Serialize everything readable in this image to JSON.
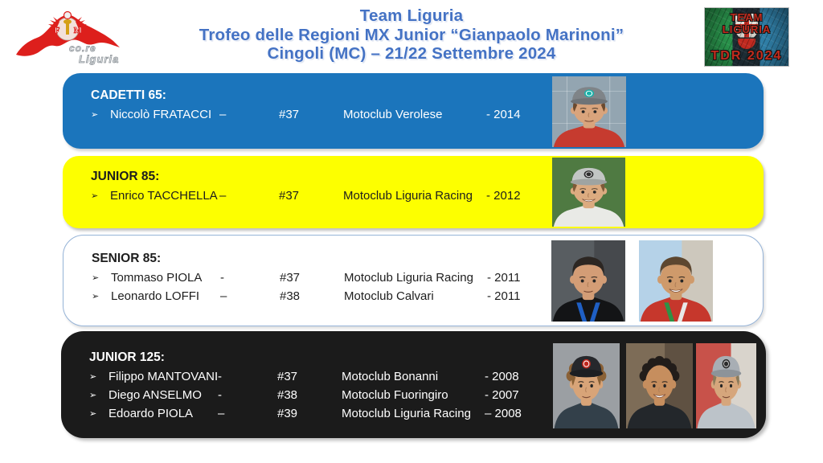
{
  "title": {
    "line1": "Team Liguria",
    "line2": "Trofeo delle Regioni MX Junior “Gianpaolo Marinoni”",
    "line3": "Cingoli (MC) – 21/22 Settembre 2024"
  },
  "logo_left": {
    "letter_f": "F",
    "letter_m": "M",
    "script_line1": "co.re",
    "script_line2": "Liguria"
  },
  "logo_right": {
    "top": "TEAM LIGURIA",
    "bottom": "TDR 2024"
  },
  "ui": {
    "bullet": "➢"
  },
  "colors": {
    "title_blue": "#4472C4",
    "panel_blue": "#1B75BC",
    "panel_yellow": "#FDFF00",
    "panel_black": "#1B1B1B",
    "panel_white_border": "#95B3D7",
    "flag_green": "#28914a",
    "flag_blue": "#2f7ea6",
    "flag_red": "#c12a20",
    "logo_red": "#DD1F1C"
  },
  "panels": [
    {
      "id": "cadetti-65",
      "heading": "CADETTI 65:",
      "rows": [
        {
          "name": "Niccolò FRATACCI",
          "dash": "–",
          "number": "#37",
          "club": "Motoclub Verolese",
          "year": "- 2014"
        }
      ],
      "photos": [
        {
          "alt": "Niccolò Fratacci portrait",
          "bg": "#93a5b1",
          "grid": true,
          "shirt": "#c63b2f",
          "skin": "#d9a47c",
          "hair": "#6b4a2f",
          "cap": "#7f8488",
          "capBrim": "#6e7377",
          "capLogo": "#19b2aa",
          "capLogoRing": "#ffffff",
          "smile": false
        }
      ]
    },
    {
      "id": "junior-85",
      "heading": "JUNIOR 85:",
      "rows": [
        {
          "name": "Enrico TACCHELLA",
          "dash": "–",
          "number": "#37",
          "club": "Motoclub Liguria Racing",
          "year": "- 2012"
        }
      ],
      "photos": [
        {
          "alt": "Enrico Tacchella portrait",
          "bg": "#4f7a42",
          "shirt": "#e9eae6",
          "skin": "#dcab80",
          "hair": "#7d5a38",
          "cap": "#c2c6c4",
          "capBrim": "#9fa4a2",
          "capLogo": "#2e2e2e",
          "capLogoRing": "#e8e8e8",
          "smile": true
        }
      ]
    },
    {
      "id": "senior-85",
      "heading": "SENIOR 85:",
      "rows": [
        {
          "name": "Tommaso PIOLA",
          "dash": "-",
          "number": "#37",
          "club": "Motoclub Liguria Racing",
          "year": "- 2011"
        },
        {
          "name": "Leonardo LOFFI",
          "dash": "–",
          "number": "#38",
          "club": "Motoclub Calvari",
          "year": "- 2011"
        }
      ],
      "photos": [
        {
          "alt": "Tommaso Piola portrait",
          "bg": "#585d61",
          "bg2": "#46494d",
          "shirt": "#131416",
          "skin": "#d39d76",
          "hair": "#2c2622",
          "lanyard": "#1f5fc4",
          "lanyard2": "#1f5fc4",
          "smile": false
        },
        {
          "alt": "Leonardo Loffi portrait",
          "bg": "#b5d2e8",
          "bg2": "#cdc8bd",
          "shirt": "#c6372c",
          "skin": "#cf9a6b",
          "hair": "#5d4730",
          "lanyard": "#2e9246",
          "lanyard2": "#e8e8e8",
          "smile": true
        }
      ]
    },
    {
      "id": "junior-125",
      "heading": "JUNIOR 125:",
      "rows": [
        {
          "name": "Filippo MANTOVANI",
          "dash": "-",
          "number": "#37",
          "club": "Motoclub Bonanni",
          "year": "- 2008"
        },
        {
          "name": "Diego ANSELMO",
          "dash": "-",
          "number": "#38",
          "club": "Motoclub Fuoringiro",
          "year": "- 2007"
        },
        {
          "name": "Edoardo PIOLA",
          "dash": "–",
          "number": "#39",
          "club": "Motoclub Liguria Racing",
          "year": "– 2008"
        }
      ],
      "photos": [
        {
          "alt": "Filippo Mantovani portrait",
          "bg": "#9b9fa3",
          "shirt": "#33404a",
          "skin": "#d8a478",
          "hair": "#8a6136",
          "curly": true,
          "cap": "#26282c",
          "capBrim": "#1c1e22",
          "capLogo": "#c0271e",
          "capLogoRing": "#ffffff",
          "smile": false
        },
        {
          "alt": "Diego Anselmo portrait",
          "bg": "#7d6c57",
          "bg2": "#5f5142",
          "shirt": "#23272b",
          "skin": "#c68e5e",
          "hair": "#221d1a",
          "curly": true,
          "smile": true
        },
        {
          "alt": "Edoardo Piola portrait",
          "bg": "#c8524a",
          "bg2": "#d9d4cc",
          "shirt": "#bcc3c9",
          "skin": "#d6a67c",
          "hair": "#8a7a5a",
          "cap": "#a8aeb4",
          "capBrim": "#8d9399",
          "capLogo": "#2b2b2b",
          "capLogoRing": "#cfcfcf",
          "smile": false
        }
      ]
    }
  ]
}
